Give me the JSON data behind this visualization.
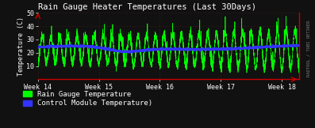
{
  "title": "Rain Gauge Heater Temperatures (Last 30Days)",
  "ylabel": "Temperature (C)",
  "bg_color": "#111111",
  "plot_bg_color": "#111111",
  "grid_color": "#333333",
  "title_color": "#ffffff",
  "label_color": "#ffffff",
  "tick_color": "#ffffff",
  "green_color": "#00ff00",
  "blue_color": "#3333ff",
  "red_color": "#cc0000",
  "xtick_labels": [
    "Week 14",
    "Week 15",
    "Week 16",
    "Week 17",
    "Week 18"
  ],
  "xtick_positions": [
    0,
    7,
    14,
    21,
    28
  ],
  "ylim": [
    0,
    50
  ],
  "yticks": [
    10,
    20,
    30,
    40,
    50
  ],
  "legend_green": "Rain Gauge Temperature",
  "legend_blue": "Control Module Temperature)",
  "watermark": "RADTOOL / TOBI OETIKER",
  "n_days": 30,
  "seed": 77
}
